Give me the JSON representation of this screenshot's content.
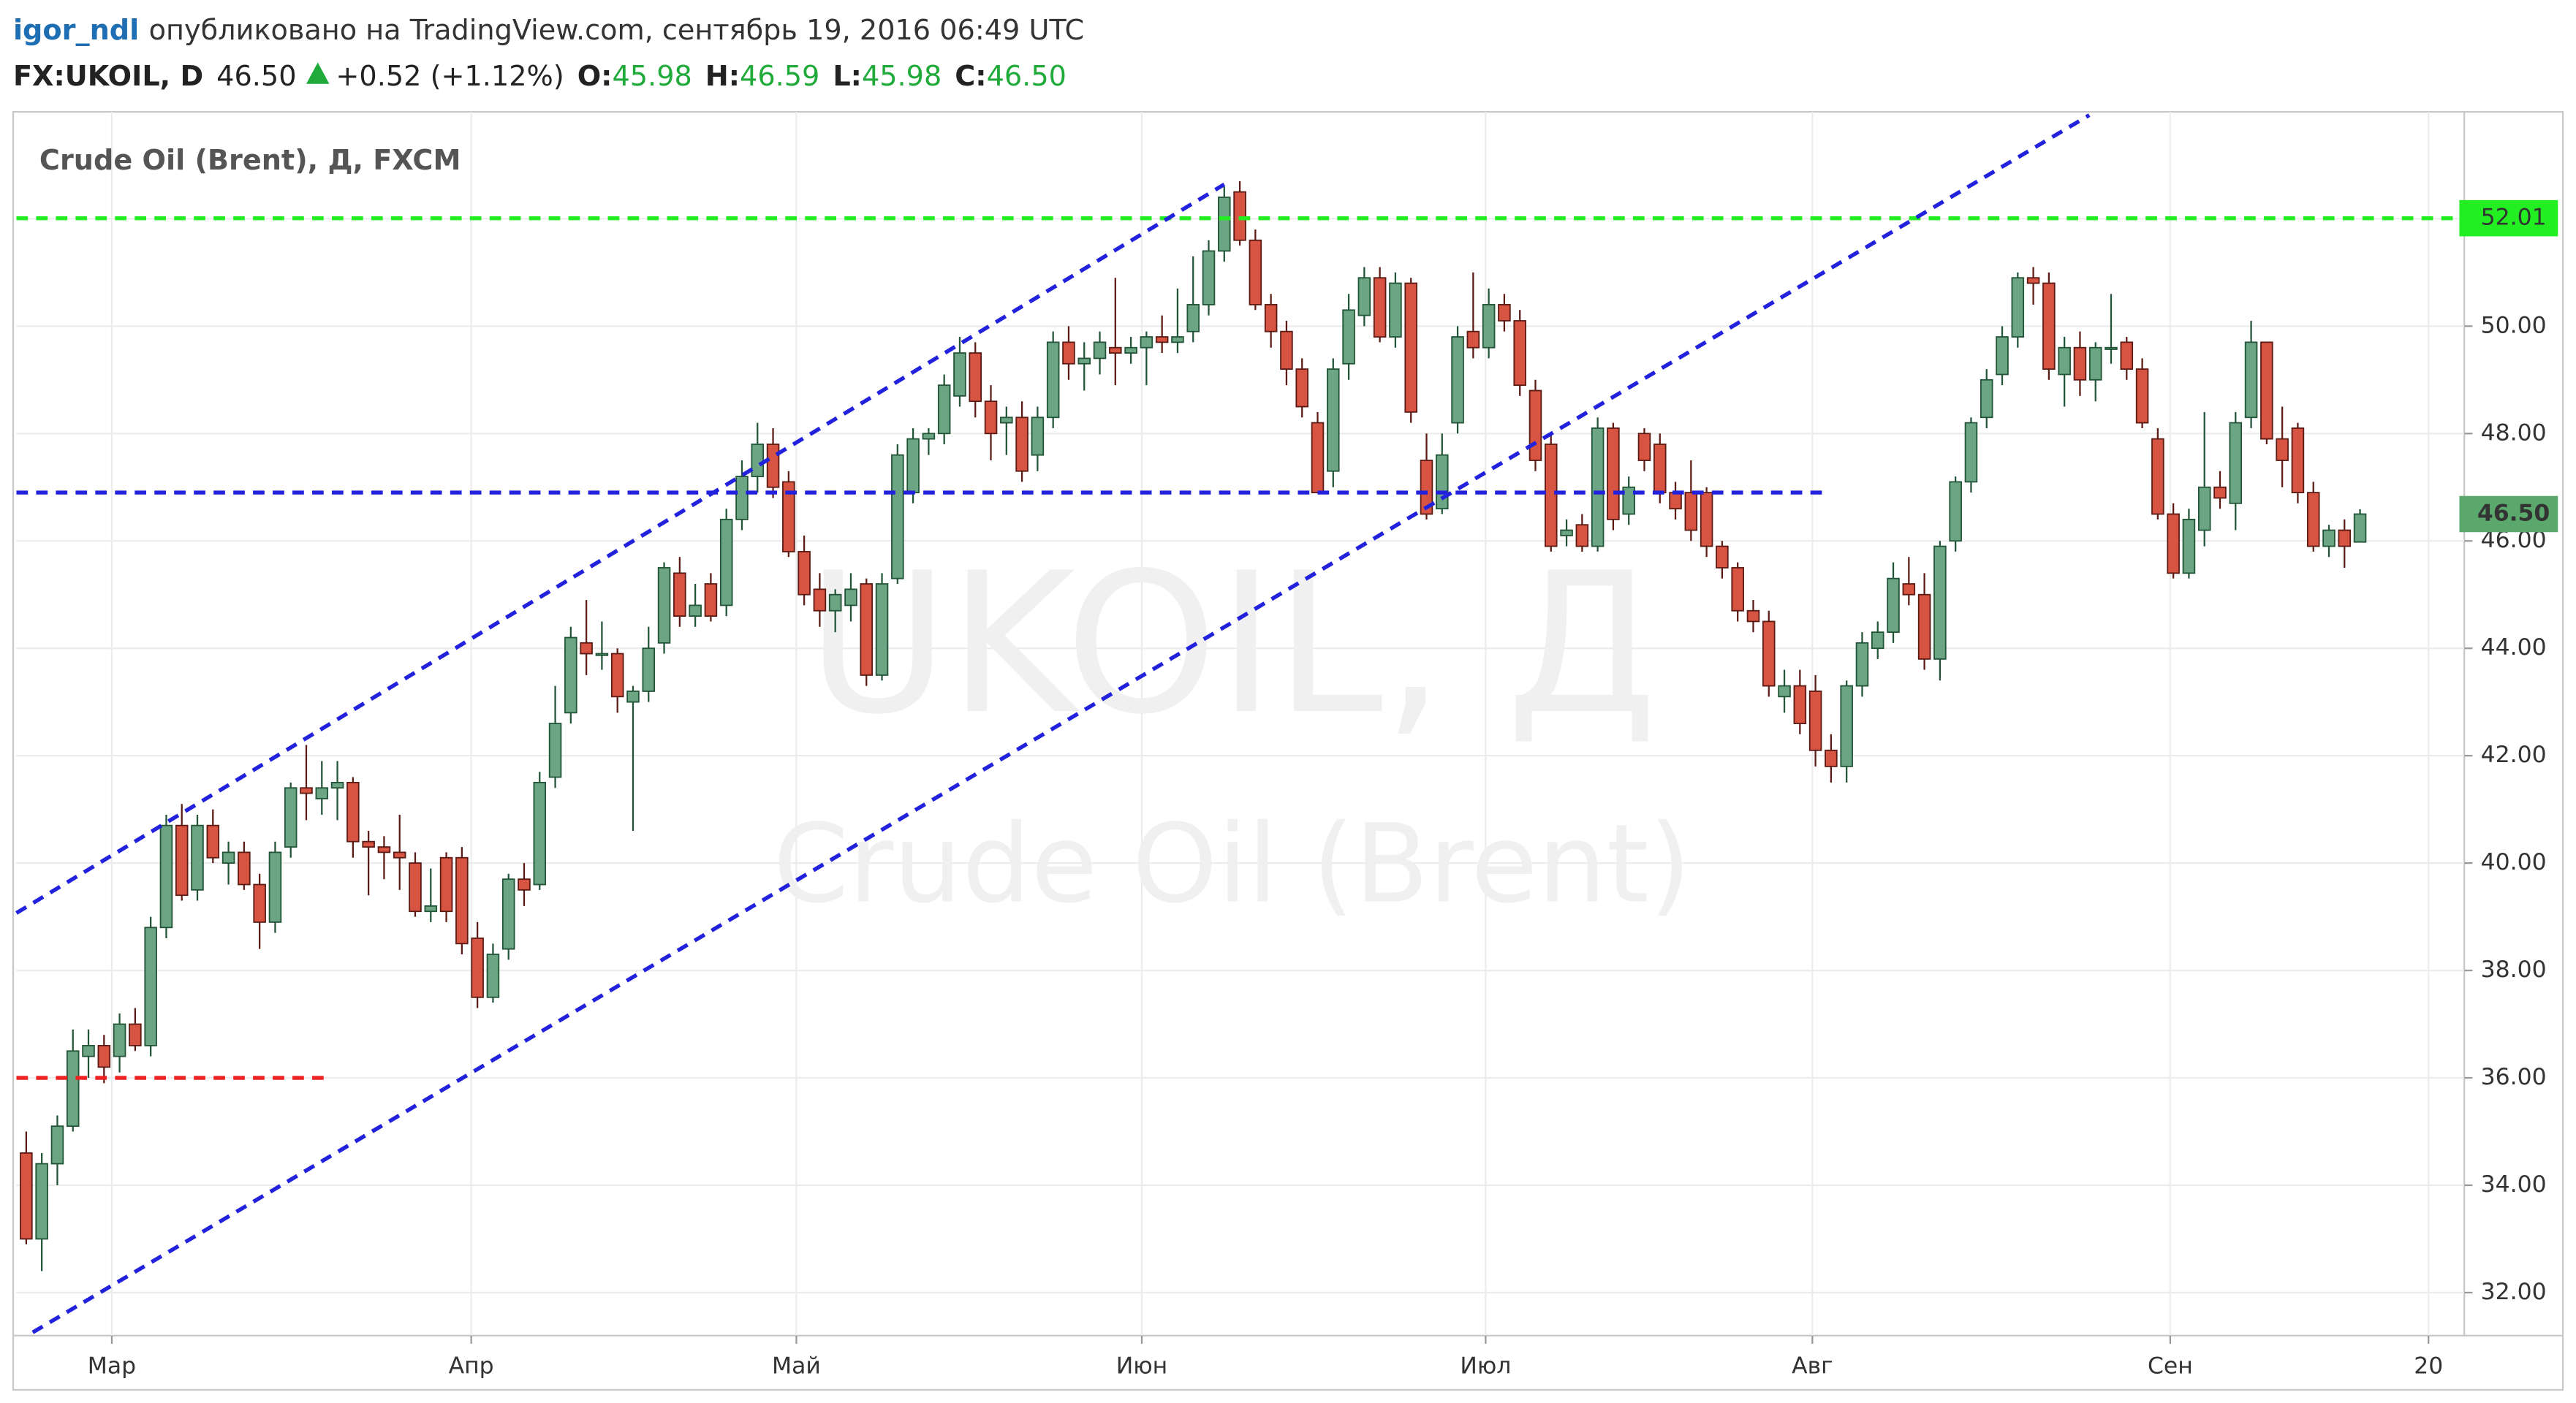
{
  "header": {
    "user": "igor_ndl",
    "published": "опубликовано на TradingView.com, сентябрь 19, 2016 06:49 UTC",
    "symbol": "FX:UKOIL, D",
    "price": "46.50",
    "change": "+0.52 (+1.12%)",
    "ohlc": [
      {
        "key": "O:",
        "value": "45.98"
      },
      {
        "key": "H:",
        "value": "46.59"
      },
      {
        "key": "L:",
        "value": "45.98"
      },
      {
        "key": "C:",
        "value": "46.50"
      }
    ]
  },
  "chart_data": {
    "type": "candlestick",
    "title": "Crude Oil (Brent), Д, FXCM",
    "watermark": "UKOIL, Д",
    "watermark_subtitle": "Crude Oil (Brent)",
    "up_color": "#6ba583",
    "down_color": "#d75442",
    "up_border": "#225437",
    "down_border": "#5b1a13",
    "grid": true,
    "xlim": [
      -0.63,
      156.7
    ],
    "xticks": [
      {
        "value": 5.5,
        "label": "Мар"
      },
      {
        "value": 28.6,
        "label": "Апр"
      },
      {
        "value": 49.5,
        "label": "Май"
      },
      {
        "value": 71.7,
        "label": "Июн"
      },
      {
        "value": 93.8,
        "label": "Июл"
      },
      {
        "value": 114.8,
        "label": "Авг"
      },
      {
        "value": 137.8,
        "label": "Сен"
      },
      {
        "value": 154.4,
        "label": "20"
      }
    ],
    "ylim": [
      31.2,
      53.93
    ],
    "yticks": [
      {
        "value": 32,
        "label": "32.00"
      },
      {
        "value": 34,
        "label": "34.00"
      },
      {
        "value": 36,
        "label": "36.00"
      },
      {
        "value": 38,
        "label": "38.00"
      },
      {
        "value": 40,
        "label": "40.00"
      },
      {
        "value": 42,
        "label": "42.00"
      },
      {
        "value": 44,
        "label": "44.00"
      },
      {
        "value": 46,
        "label": "46.00"
      },
      {
        "value": 48,
        "label": "48.00"
      },
      {
        "value": 50,
        "label": "50.00"
      },
      {
        "value": 52,
        "label": "52.00"
      }
    ],
    "ohlc": [
      [
        34.6,
        35.0,
        32.9,
        33.0
      ],
      [
        33.0,
        34.6,
        32.4,
        34.4
      ],
      [
        34.4,
        35.3,
        34.0,
        35.1
      ],
      [
        35.1,
        36.9,
        35.0,
        36.5
      ],
      [
        36.4,
        36.9,
        36.0,
        36.6
      ],
      [
        36.6,
        36.8,
        35.9,
        36.2
      ],
      [
        36.4,
        37.2,
        36.1,
        37.0
      ],
      [
        37.0,
        37.3,
        36.5,
        36.6
      ],
      [
        36.6,
        39.0,
        36.4,
        38.8
      ],
      [
        38.8,
        40.9,
        38.6,
        40.7
      ],
      [
        40.7,
        41.1,
        39.3,
        39.4
      ],
      [
        39.5,
        40.9,
        39.3,
        40.7
      ],
      [
        40.7,
        41.0,
        40.0,
        40.1
      ],
      [
        40.0,
        40.4,
        39.6,
        40.2
      ],
      [
        40.2,
        40.4,
        39.5,
        39.6
      ],
      [
        39.6,
        39.8,
        38.4,
        38.9
      ],
      [
        38.9,
        40.4,
        38.7,
        40.2
      ],
      [
        40.3,
        41.5,
        40.1,
        41.4
      ],
      [
        41.4,
        42.2,
        40.8,
        41.3
      ],
      [
        41.2,
        41.9,
        40.9,
        41.4
      ],
      [
        41.4,
        41.9,
        40.8,
        41.5
      ],
      [
        41.5,
        41.6,
        40.1,
        40.4
      ],
      [
        40.4,
        40.6,
        39.4,
        40.3
      ],
      [
        40.3,
        40.5,
        39.7,
        40.2
      ],
      [
        40.2,
        40.9,
        39.5,
        40.1
      ],
      [
        40.0,
        40.2,
        39.0,
        39.1
      ],
      [
        39.1,
        39.9,
        38.9,
        39.2
      ],
      [
        40.1,
        40.2,
        38.9,
        39.1
      ],
      [
        40.1,
        40.3,
        38.3,
        38.5
      ],
      [
        38.6,
        38.9,
        37.3,
        37.5
      ],
      [
        37.5,
        38.5,
        37.4,
        38.3
      ],
      [
        38.4,
        39.8,
        38.2,
        39.7
      ],
      [
        39.7,
        40.0,
        39.2,
        39.5
      ],
      [
        39.6,
        41.7,
        39.5,
        41.5
      ],
      [
        41.6,
        43.3,
        41.4,
        42.6
      ],
      [
        42.8,
        44.4,
        42.6,
        44.2
      ],
      [
        44.1,
        44.9,
        43.5,
        43.9
      ],
      [
        43.9,
        44.5,
        43.6,
        43.9
      ],
      [
        43.9,
        44.0,
        42.8,
        43.1
      ],
      [
        43.0,
        43.3,
        40.6,
        43.2
      ],
      [
        43.2,
        44.4,
        43.0,
        44.0
      ],
      [
        44.1,
        45.6,
        43.9,
        45.5
      ],
      [
        45.4,
        45.7,
        44.4,
        44.6
      ],
      [
        44.6,
        45.2,
        44.4,
        44.8
      ],
      [
        45.2,
        45.4,
        44.5,
        44.6
      ],
      [
        44.8,
        46.6,
        44.6,
        46.4
      ],
      [
        46.4,
        47.5,
        46.2,
        47.2
      ],
      [
        47.2,
        48.2,
        46.9,
        47.8
      ],
      [
        47.8,
        48.1,
        46.8,
        47.0
      ],
      [
        47.1,
        47.3,
        45.7,
        45.8
      ],
      [
        45.8,
        46.1,
        44.8,
        45.0
      ],
      [
        45.1,
        45.4,
        44.4,
        44.7
      ],
      [
        44.7,
        45.1,
        44.3,
        45.0
      ],
      [
        44.8,
        45.4,
        44.5,
        45.1
      ],
      [
        45.2,
        45.3,
        43.3,
        43.5
      ],
      [
        43.5,
        45.4,
        43.4,
        45.2
      ],
      [
        45.3,
        47.8,
        45.2,
        47.6
      ],
      [
        46.9,
        48.1,
        46.7,
        47.9
      ],
      [
        47.9,
        48.1,
        47.6,
        48.0
      ],
      [
        48.0,
        49.1,
        47.8,
        48.9
      ],
      [
        48.7,
        49.8,
        48.5,
        49.5
      ],
      [
        49.5,
        49.7,
        48.3,
        48.6
      ],
      [
        48.6,
        48.9,
        47.5,
        48.0
      ],
      [
        48.2,
        48.5,
        47.6,
        48.3
      ],
      [
        48.3,
        48.6,
        47.1,
        47.3
      ],
      [
        47.6,
        48.5,
        47.3,
        48.3
      ],
      [
        48.3,
        49.9,
        48.1,
        49.7
      ],
      [
        49.7,
        50.0,
        49.0,
        49.3
      ],
      [
        49.3,
        49.7,
        48.8,
        49.4
      ],
      [
        49.4,
        49.9,
        49.1,
        49.7
      ],
      [
        49.6,
        50.9,
        48.9,
        49.5
      ],
      [
        49.5,
        49.8,
        49.3,
        49.6
      ],
      [
        49.6,
        49.9,
        48.9,
        49.8
      ],
      [
        49.8,
        50.2,
        49.5,
        49.7
      ],
      [
        49.7,
        50.7,
        49.5,
        49.8
      ],
      [
        49.9,
        51.3,
        49.7,
        50.4
      ],
      [
        50.4,
        51.6,
        50.2,
        51.4
      ],
      [
        51.4,
        52.6,
        51.2,
        52.4
      ],
      [
        52.5,
        52.7,
        51.5,
        51.6
      ],
      [
        51.6,
        51.8,
        50.3,
        50.4
      ],
      [
        50.4,
        50.6,
        49.6,
        49.9
      ],
      [
        49.9,
        50.1,
        48.9,
        49.2
      ],
      [
        49.2,
        49.4,
        48.3,
        48.5
      ],
      [
        48.2,
        48.4,
        46.9,
        46.9
      ],
      [
        47.3,
        49.4,
        47.0,
        49.2
      ],
      [
        49.3,
        50.6,
        49.0,
        50.3
      ],
      [
        50.2,
        51.1,
        50.0,
        50.9
      ],
      [
        50.9,
        51.1,
        49.7,
        49.8
      ],
      [
        49.8,
        51.0,
        49.6,
        50.8
      ],
      [
        50.8,
        50.9,
        48.2,
        48.4
      ],
      [
        47.5,
        48.0,
        46.4,
        46.5
      ],
      [
        46.6,
        48.0,
        46.5,
        47.6
      ],
      [
        48.2,
        50.0,
        48.0,
        49.8
      ],
      [
        49.9,
        51.0,
        49.4,
        49.6
      ],
      [
        49.6,
        50.7,
        49.4,
        50.4
      ],
      [
        50.4,
        50.6,
        49.9,
        50.1
      ],
      [
        50.1,
        50.3,
        48.7,
        48.9
      ],
      [
        48.8,
        49.0,
        47.3,
        47.5
      ],
      [
        47.8,
        48.0,
        45.8,
        45.9
      ],
      [
        46.1,
        46.4,
        45.9,
        46.2
      ],
      [
        46.3,
        46.5,
        45.8,
        45.9
      ],
      [
        45.9,
        48.3,
        45.8,
        48.1
      ],
      [
        48.1,
        48.2,
        46.2,
        46.4
      ],
      [
        46.5,
        47.2,
        46.3,
        47.0
      ],
      [
        48.0,
        48.1,
        47.3,
        47.5
      ],
      [
        47.8,
        48.0,
        46.7,
        46.9
      ],
      [
        46.9,
        47.1,
        46.4,
        46.6
      ],
      [
        46.9,
        47.5,
        46.0,
        46.2
      ],
      [
        46.9,
        47.0,
        45.7,
        45.9
      ],
      [
        45.9,
        46.0,
        45.3,
        45.5
      ],
      [
        45.5,
        45.6,
        44.5,
        44.7
      ],
      [
        44.7,
        44.9,
        44.3,
        44.5
      ],
      [
        44.5,
        44.7,
        43.1,
        43.3
      ],
      [
        43.1,
        43.6,
        42.8,
        43.3
      ],
      [
        43.3,
        43.6,
        42.4,
        42.6
      ],
      [
        43.2,
        43.5,
        41.8,
        42.1
      ],
      [
        42.1,
        42.4,
        41.5,
        41.8
      ],
      [
        41.8,
        43.4,
        41.5,
        43.3
      ],
      [
        43.3,
        44.3,
        43.1,
        44.1
      ],
      [
        44.0,
        44.5,
        43.8,
        44.3
      ],
      [
        44.3,
        45.6,
        44.1,
        45.3
      ],
      [
        45.2,
        45.7,
        44.8,
        45.0
      ],
      [
        45.0,
        45.4,
        43.6,
        43.8
      ],
      [
        43.8,
        46.0,
        43.4,
        45.9
      ],
      [
        46.0,
        47.2,
        45.8,
        47.1
      ],
      [
        47.1,
        48.3,
        46.9,
        48.2
      ],
      [
        48.3,
        49.2,
        48.1,
        49.0
      ],
      [
        49.1,
        50.0,
        48.9,
        49.8
      ],
      [
        49.8,
        51.0,
        49.6,
        50.9
      ],
      [
        50.9,
        51.1,
        50.4,
        50.8
      ],
      [
        50.8,
        51.0,
        49.0,
        49.2
      ],
      [
        49.1,
        49.8,
        48.5,
        49.6
      ],
      [
        49.6,
        49.9,
        48.7,
        49.0
      ],
      [
        49.0,
        49.7,
        48.6,
        49.6
      ],
      [
        49.6,
        50.6,
        49.3,
        49.6
      ],
      [
        49.7,
        49.8,
        49.0,
        49.2
      ],
      [
        49.2,
        49.4,
        48.1,
        48.2
      ],
      [
        47.9,
        48.1,
        46.4,
        46.5
      ],
      [
        46.5,
        46.7,
        45.3,
        45.4
      ],
      [
        45.4,
        46.6,
        45.3,
        46.4
      ],
      [
        46.2,
        48.4,
        45.9,
        47.0
      ],
      [
        47.0,
        47.3,
        46.6,
        46.8
      ],
      [
        46.7,
        48.4,
        46.2,
        48.2
      ],
      [
        48.3,
        50.1,
        48.1,
        49.7
      ],
      [
        49.7,
        49.7,
        47.8,
        47.9
      ],
      [
        47.9,
        48.5,
        47.0,
        47.5
      ],
      [
        48.1,
        48.2,
        46.7,
        46.9
      ],
      [
        46.9,
        47.1,
        45.8,
        45.9
      ],
      [
        45.9,
        46.3,
        45.7,
        46.2
      ],
      [
        46.2,
        46.4,
        45.5,
        45.9
      ],
      [
        45.98,
        46.59,
        45.98,
        46.5
      ]
    ],
    "last_price": {
      "value": 46.5,
      "label": "46.50"
    },
    "last_price_color": "#5aa86c",
    "hlines": [
      {
        "value": 52.01,
        "color": "#22ee22",
        "x_end": 156.7,
        "labeled": true
      },
      {
        "value": 46.9,
        "color": "#2222dd",
        "x_end": 115.8,
        "labeled": false
      },
      {
        "value": 36.0,
        "color": "#ee2222",
        "x_end": 19.3,
        "labeled": false
      }
    ],
    "trendlines": [
      {
        "x": [
          -0.63,
          77.0
        ],
        "y": [
          39.07,
          52.64
        ],
        "color": "#2222dd"
      },
      {
        "x": [
          0.42,
          132.6
        ],
        "y": [
          31.26,
          53.93
        ],
        "color": "#2222dd"
      }
    ]
  }
}
